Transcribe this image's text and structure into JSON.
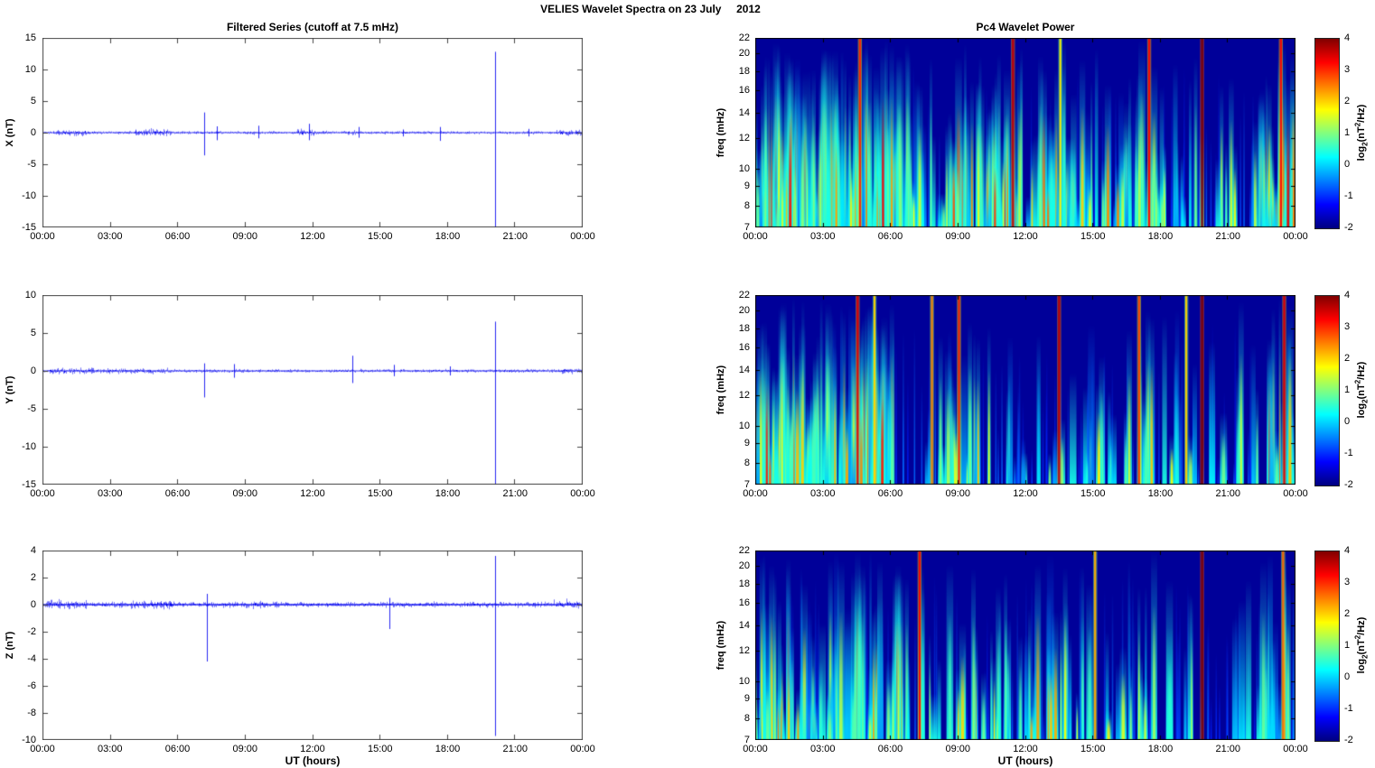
{
  "figure_title": "VELIES Wavelet Spectra on 23 July     2012",
  "left_title": "Filtered Series (cutoff at 7.5 mHz)",
  "right_title": "Pc4 Wavelet Power",
  "x_axis": {
    "label": "UT (hours)",
    "ticks": [
      "00:00",
      "03:00",
      "06:00",
      "09:00",
      "12:00",
      "15:00",
      "18:00",
      "21:00",
      "00:00"
    ]
  },
  "colorbar": {
    "ticks": [
      4,
      3,
      2,
      1,
      0,
      -1,
      -2
    ],
    "label_prefix": "log",
    "label_sub": "2",
    "label_mid": "(nT",
    "label_sup": "2",
    "label_suffix": "/Hz)",
    "colormap": "jet",
    "value_range": [
      -2,
      4
    ]
  },
  "colors": {
    "line": "#0000ee",
    "spectro_background": "#000099",
    "axis": "#444444",
    "page_background": "#ffffff"
  },
  "chart_data": [
    {
      "id": "x-filtered-series",
      "type": "line",
      "seed": 11,
      "title": "Filtered Series (cutoff at 7.5 mHz)",
      "xlabel": "UT (hours)",
      "ylabel": "X (nT)",
      "xlim_hours": [
        0,
        24
      ],
      "ylim": [
        -15,
        15
      ],
      "yticks": [
        15,
        10,
        5,
        0,
        -5,
        -10,
        -15
      ],
      "baseline_nT": 0,
      "noise_amp_nT": 0.22,
      "noise_bursts": [
        {
          "t0": 0.6,
          "t1": 2.1,
          "amp": 0.4
        },
        {
          "t0": 4.1,
          "t1": 5.7,
          "amp": 0.55
        },
        {
          "t0": 9.0,
          "t1": 9.4,
          "amp": 0.35
        },
        {
          "t0": 11.3,
          "t1": 12.1,
          "amp": 0.5
        },
        {
          "t0": 13.4,
          "t1": 13.9,
          "amp": 0.35
        },
        {
          "t0": 22.8,
          "t1": 24.0,
          "amp": 0.5
        }
      ],
      "spikes_nT": [
        {
          "t": 7.17,
          "up": 3.2,
          "down": -3.6
        },
        {
          "t": 7.75,
          "up": 1.0,
          "down": -1.2
        },
        {
          "t": 9.6,
          "up": 1.1,
          "down": -0.9
        },
        {
          "t": 11.85,
          "up": 1.4,
          "down": -1.2
        },
        {
          "t": 14.05,
          "up": 0.9,
          "down": -0.8
        },
        {
          "t": 16.0,
          "up": 0.5,
          "down": -0.6
        },
        {
          "t": 17.65,
          "up": 0.9,
          "down": -1.3
        },
        {
          "t": 20.1,
          "up": 12.8,
          "down": -15.0
        },
        {
          "t": 21.6,
          "up": 0.6,
          "down": -0.6
        }
      ]
    },
    {
      "id": "x-wavelet-power",
      "type": "heatmap",
      "seed": 21,
      "title": "Pc4 Wavelet Power",
      "ylabel": "freq (mHz)",
      "freq_lim_mHz": [
        7,
        22
      ],
      "freq_scale": "log",
      "freq_ticks_mHz": [
        22,
        20,
        18,
        16,
        14,
        12,
        10,
        9,
        8,
        7
      ],
      "value_label": "log2(nT^2/Hz)",
      "value_range": [
        -2,
        4
      ],
      "activity_bands": [
        {
          "t0": 0.0,
          "t1": 2.4,
          "count": 60,
          "vmax": 3.4
        },
        {
          "t0": 2.4,
          "t1": 4.0,
          "count": 34,
          "vmax": 2.6
        },
        {
          "t0": 4.0,
          "t1": 6.4,
          "count": 60,
          "vmax": 3.4
        },
        {
          "t0": 6.4,
          "t1": 8.6,
          "count": 20,
          "vmax": 2.2
        },
        {
          "t0": 8.6,
          "t1": 11.3,
          "count": 40,
          "vmax": 3.2
        },
        {
          "t0": 11.3,
          "t1": 14.3,
          "count": 30,
          "vmax": 2.8
        },
        {
          "t0": 14.3,
          "t1": 16.6,
          "count": 22,
          "vmax": 2.6
        },
        {
          "t0": 16.6,
          "t1": 19.4,
          "count": 24,
          "vmax": 2.4
        },
        {
          "t0": 19.4,
          "t1": 22.6,
          "count": 14,
          "vmax": 1.8
        },
        {
          "t0": 22.6,
          "t1": 24.0,
          "count": 30,
          "vmax": 3.4
        }
      ],
      "intense_lines": [
        {
          "t": 4.65,
          "v": 3.0
        },
        {
          "t": 11.45,
          "v": 3.6
        },
        {
          "t": 13.55,
          "v": 1.8
        },
        {
          "t": 17.5,
          "v": 3.2
        },
        {
          "t": 19.85,
          "v": 4.0
        },
        {
          "t": 23.35,
          "v": 3.2
        }
      ]
    },
    {
      "id": "y-filtered-series",
      "type": "line",
      "seed": 12,
      "title": "Filtered Series (cutoff at 7.5 mHz)",
      "xlabel": "UT (hours)",
      "ylabel": "Y (nT)",
      "xlim_hours": [
        0,
        24
      ],
      "ylim": [
        -15,
        10
      ],
      "yticks": [
        10,
        5,
        0,
        -5,
        -10,
        -15
      ],
      "baseline_nT": 0,
      "noise_amp_nT": 0.2,
      "noise_bursts": [
        {
          "t0": 0.3,
          "t1": 2.3,
          "amp": 0.4
        },
        {
          "t0": 2.3,
          "t1": 5.6,
          "amp": 0.3
        },
        {
          "t0": 23.0,
          "t1": 24.0,
          "amp": 0.35
        }
      ],
      "spikes_nT": [
        {
          "t": 7.2,
          "up": 1.0,
          "down": -3.5
        },
        {
          "t": 8.5,
          "up": 0.9,
          "down": -0.9
        },
        {
          "t": 13.75,
          "up": 2.0,
          "down": -1.6
        },
        {
          "t": 15.6,
          "up": 0.8,
          "down": -0.7
        },
        {
          "t": 18.1,
          "up": 0.6,
          "down": -0.6
        },
        {
          "t": 20.1,
          "up": 6.5,
          "down": -15.0
        }
      ]
    },
    {
      "id": "y-wavelet-power",
      "type": "heatmap",
      "seed": 22,
      "title": "Pc4 Wavelet Power",
      "ylabel": "freq (mHz)",
      "freq_lim_mHz": [
        7,
        22
      ],
      "freq_scale": "log",
      "freq_ticks_mHz": [
        22,
        20,
        18,
        16,
        14,
        12,
        10,
        9,
        8,
        7
      ],
      "value_label": "log2(nT^2/Hz)",
      "value_range": [
        -2,
        4
      ],
      "activity_bands": [
        {
          "t0": 0.0,
          "t1": 2.4,
          "count": 45,
          "vmax": 3.2
        },
        {
          "t0": 2.4,
          "t1": 4.2,
          "count": 30,
          "vmax": 2.6
        },
        {
          "t0": 4.2,
          "t1": 6.2,
          "count": 48,
          "vmax": 3.2
        },
        {
          "t0": 6.2,
          "t1": 9.4,
          "count": 12,
          "vmax": 2.0
        },
        {
          "t0": 9.4,
          "t1": 12.6,
          "count": 16,
          "vmax": 2.2
        },
        {
          "t0": 12.6,
          "t1": 16.3,
          "count": 13,
          "vmax": 2.0
        },
        {
          "t0": 16.3,
          "t1": 19.6,
          "count": 15,
          "vmax": 2.2
        },
        {
          "t0": 19.6,
          "t1": 22.8,
          "count": 7,
          "vmax": 1.5
        },
        {
          "t0": 22.8,
          "t1": 24.0,
          "count": 16,
          "vmax": 3.0
        }
      ],
      "intense_lines": [
        {
          "t": 4.55,
          "v": 3.4
        },
        {
          "t": 5.3,
          "v": 2.0
        },
        {
          "t": 7.85,
          "v": 2.4
        },
        {
          "t": 9.05,
          "v": 3.0
        },
        {
          "t": 13.5,
          "v": 3.6
        },
        {
          "t": 17.05,
          "v": 2.8
        },
        {
          "t": 19.15,
          "v": 2.0
        },
        {
          "t": 19.85,
          "v": 4.0
        },
        {
          "t": 23.5,
          "v": 3.4
        }
      ]
    },
    {
      "id": "z-filtered-series",
      "type": "line",
      "seed": 13,
      "title": "Filtered Series (cutoff at 7.5 mHz)",
      "xlabel": "UT (hours)",
      "ylabel": "Z (nT)",
      "xlim_hours": [
        0,
        24
      ],
      "ylim": [
        -10,
        4
      ],
      "yticks": [
        4,
        2,
        0,
        -2,
        -4,
        -6,
        -8,
        -10
      ],
      "baseline_nT": 0,
      "noise_amp_nT": 0.18,
      "noise_bursts": [
        {
          "t0": 0.2,
          "t1": 2.0,
          "amp": 0.3
        },
        {
          "t0": 3.9,
          "t1": 5.8,
          "amp": 0.3
        },
        {
          "t0": 9.0,
          "t1": 10.5,
          "amp": 0.25
        },
        {
          "t0": 22.7,
          "t1": 24.0,
          "amp": 0.3
        }
      ],
      "spikes_nT": [
        {
          "t": 7.3,
          "up": 0.8,
          "down": -4.2
        },
        {
          "t": 15.4,
          "up": 0.5,
          "down": -1.8
        },
        {
          "t": 20.1,
          "up": 3.6,
          "down": -9.7
        }
      ]
    },
    {
      "id": "z-wavelet-power",
      "type": "heatmap",
      "seed": 23,
      "title": "Pc4 Wavelet Power",
      "ylabel": "freq (mHz)",
      "freq_lim_mHz": [
        7,
        22
      ],
      "freq_scale": "log",
      "freq_ticks_mHz": [
        22,
        20,
        18,
        16,
        14,
        12,
        10,
        9,
        8,
        7
      ],
      "value_label": "log2(nT^2/Hz)",
      "value_range": [
        -2,
        4
      ],
      "activity_bands": [
        {
          "t0": 0.0,
          "t1": 2.5,
          "count": 32,
          "vmax": 2.8
        },
        {
          "t0": 2.5,
          "t1": 4.3,
          "count": 18,
          "vmax": 2.0
        },
        {
          "t0": 4.3,
          "t1": 6.5,
          "count": 32,
          "vmax": 2.8
        },
        {
          "t0": 6.5,
          "t1": 9.6,
          "count": 11,
          "vmax": 2.0
        },
        {
          "t0": 9.6,
          "t1": 12.9,
          "count": 17,
          "vmax": 2.4
        },
        {
          "t0": 12.9,
          "t1": 14.6,
          "count": 15,
          "vmax": 2.8
        },
        {
          "t0": 14.6,
          "t1": 17.6,
          "count": 11,
          "vmax": 2.0
        },
        {
          "t0": 17.6,
          "t1": 19.5,
          "count": 6,
          "vmax": 1.5
        },
        {
          "t0": 19.5,
          "t1": 22.5,
          "count": 5,
          "vmax": 1.2
        },
        {
          "t0": 22.5,
          "t1": 24.0,
          "count": 14,
          "vmax": 2.6
        }
      ],
      "intense_lines": [
        {
          "t": 7.3,
          "v": 3.2
        },
        {
          "t": 15.1,
          "v": 2.2
        },
        {
          "t": 19.85,
          "v": 4.0
        },
        {
          "t": 23.45,
          "v": 2.6
        }
      ]
    }
  ]
}
